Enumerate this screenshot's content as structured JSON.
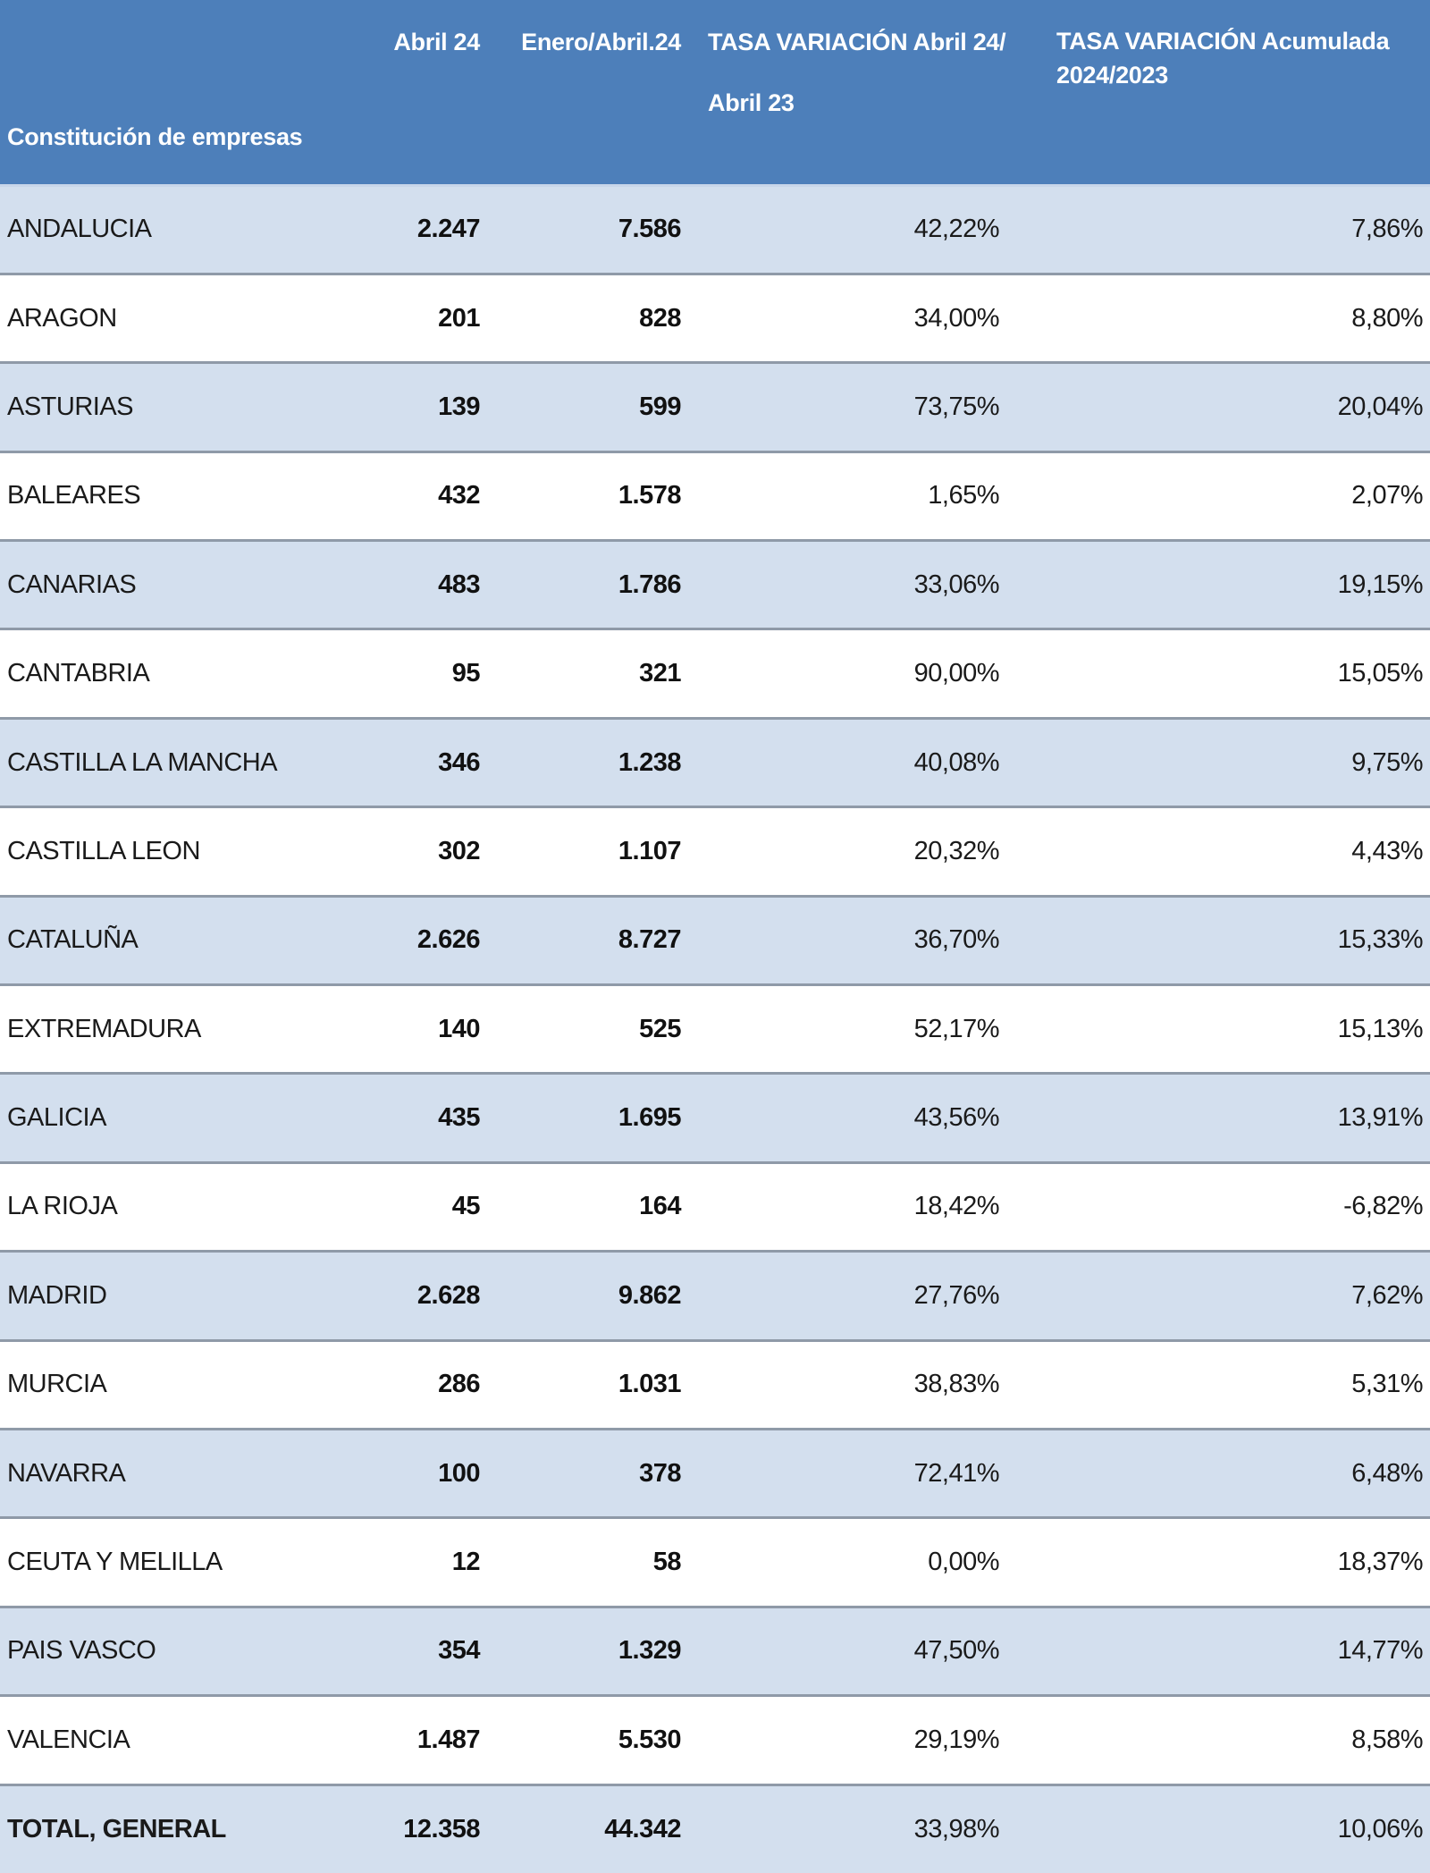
{
  "table": {
    "title": "Constitución de empresas",
    "columns": [
      "Constitución de empresas",
      "Abril 24",
      "Enero/Abril.24",
      "TASA VARIACIÓN Abril 24/ Abril 23",
      "TASA VARIACIÓN Acumulada 2024/2023"
    ],
    "header": {
      "region": "Constitución de empresas",
      "abril24": "Abril 24",
      "enero_abril24": "Enero/Abril.24",
      "tasa_mensual_l1": "TASA VARIACIÓN Abril 24/",
      "tasa_mensual_l2": "Abril 23",
      "tasa_acumulada_l1": "TASA VARIACIÓN Acumulada",
      "tasa_acumulada_l2": "2024/2023"
    },
    "rows": [
      {
        "region": "ANDALUCIA",
        "abril24": "2.247",
        "enero_abril24": "7.586",
        "tasa_mensual": "42,22%",
        "tasa_acumulada": "7,86%"
      },
      {
        "region": "ARAGON",
        "abril24": "201",
        "enero_abril24": "828",
        "tasa_mensual": "34,00%",
        "tasa_acumulada": "8,80%"
      },
      {
        "region": "ASTURIAS",
        "abril24": "139",
        "enero_abril24": "599",
        "tasa_mensual": "73,75%",
        "tasa_acumulada": "20,04%"
      },
      {
        "region": "BALEARES",
        "abril24": "432",
        "enero_abril24": "1.578",
        "tasa_mensual": "1,65%",
        "tasa_acumulada": "2,07%"
      },
      {
        "region": "CANARIAS",
        "abril24": "483",
        "enero_abril24": "1.786",
        "tasa_mensual": "33,06%",
        "tasa_acumulada": "19,15%"
      },
      {
        "region": "CANTABRIA",
        "abril24": "95",
        "enero_abril24": "321",
        "tasa_mensual": "90,00%",
        "tasa_acumulada": "15,05%"
      },
      {
        "region": "CASTILLA LA MANCHA",
        "abril24": "346",
        "enero_abril24": "1.238",
        "tasa_mensual": "40,08%",
        "tasa_acumulada": "9,75%"
      },
      {
        "region": "CASTILLA LEON",
        "abril24": "302",
        "enero_abril24": "1.107",
        "tasa_mensual": "20,32%",
        "tasa_acumulada": "4,43%"
      },
      {
        "region": "CATALUÑA",
        "abril24": "2.626",
        "enero_abril24": "8.727",
        "tasa_mensual": "36,70%",
        "tasa_acumulada": "15,33%"
      },
      {
        "region": "EXTREMADURA",
        "abril24": "140",
        "enero_abril24": "525",
        "tasa_mensual": "52,17%",
        "tasa_acumulada": "15,13%"
      },
      {
        "region": "GALICIA",
        "abril24": "435",
        "enero_abril24": "1.695",
        "tasa_mensual": "43,56%",
        "tasa_acumulada": "13,91%"
      },
      {
        "region": "LA RIOJA",
        "abril24": "45",
        "enero_abril24": "164",
        "tasa_mensual": "18,42%",
        "tasa_acumulada": "-6,82%"
      },
      {
        "region": "MADRID",
        "abril24": "2.628",
        "enero_abril24": "9.862",
        "tasa_mensual": "27,76%",
        "tasa_acumulada": "7,62%"
      },
      {
        "region": "MURCIA",
        "abril24": "286",
        "enero_abril24": "1.031",
        "tasa_mensual": "38,83%",
        "tasa_acumulada": "5,31%"
      },
      {
        "region": "NAVARRA",
        "abril24": "100",
        "enero_abril24": "378",
        "tasa_mensual": "72,41%",
        "tasa_acumulada": "6,48%"
      },
      {
        "region": "CEUTA Y MELILLA",
        "abril24": "12",
        "enero_abril24": "58",
        "tasa_mensual": "0,00%",
        "tasa_acumulada": "18,37%"
      },
      {
        "region": "PAIS VASCO",
        "abril24": "354",
        "enero_abril24": "1.329",
        "tasa_mensual": "47,50%",
        "tasa_acumulada": "14,77%"
      },
      {
        "region": "VALENCIA",
        "abril24": "1.487",
        "enero_abril24": "5.530",
        "tasa_mensual": "29,19%",
        "tasa_acumulada": "8,58%"
      }
    ],
    "total": {
      "region": "TOTAL, GENERAL",
      "abril24": "12.358",
      "enero_abril24": "44.342",
      "tasa_mensual": "33,98%",
      "tasa_acumulada": "10,06%"
    }
  },
  "colors": {
    "header_bg": "#4d7fba",
    "header_text": "#ffffff",
    "row_stripe": "#d3dfee",
    "row_plain": "#ffffff",
    "row_separator": "#8f9aa8"
  }
}
